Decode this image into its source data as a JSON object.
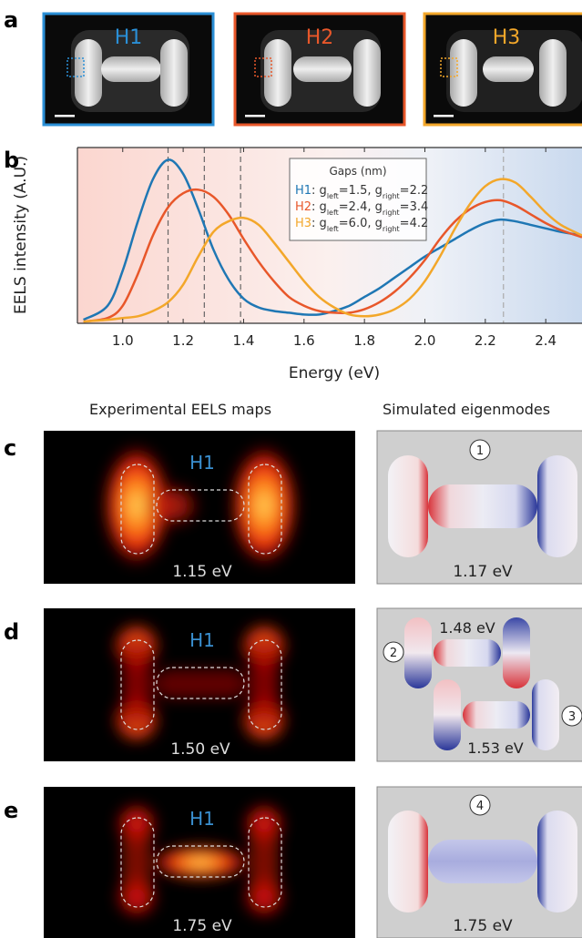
{
  "panels": {
    "a": {
      "label": "a",
      "images": [
        {
          "title": "H1",
          "color": "#1f77b4",
          "frame": "#2a8fd6"
        },
        {
          "title": "H2",
          "color": "#e8572a",
          "frame": "#e8572a"
        },
        {
          "title": "H3",
          "color": "#f3a72a",
          "frame": "#f3a72a"
        }
      ]
    },
    "b": {
      "label": "b"
    },
    "c": {
      "label": "c",
      "map_title": "H1",
      "map_energy": "1.15 eV",
      "mode_number": "1",
      "mode_energy": "1.17 eV"
    },
    "d": {
      "label": "d",
      "map_title": "H1",
      "map_energy": "1.50 eV",
      "mode_number_a": "2",
      "mode_energy_a": "1.48 eV",
      "mode_number_b": "3",
      "mode_energy_b": "1.53 eV"
    },
    "e": {
      "label": "e",
      "map_title": "H1",
      "map_energy": "1.75 eV",
      "mode_number": "4",
      "mode_energy": "1.75 eV"
    }
  },
  "column_headers": {
    "left": "Experimental EELS maps",
    "right": "Simulated eigenmodes"
  },
  "chart_data": {
    "type": "line",
    "xlabel": "Energy (eV)",
    "ylabel": "EELS intensity (A.U.)",
    "xlim": [
      0.85,
      2.52
    ],
    "ylim": [
      0,
      1.0
    ],
    "xticks": [
      "1.0",
      "1.2",
      "1.4",
      "1.6",
      "1.8",
      "2.0",
      "2.2",
      "2.4"
    ],
    "grid": false,
    "vlines": [
      1.15,
      1.27,
      1.39,
      2.26
    ],
    "legend": {
      "title": "Gaps (nm)",
      "placement": "top-right",
      "entries": [
        {
          "name": "H1",
          "text": ": g",
          "l": "left",
          "eq1": "=1.5,  g",
          "r": "right",
          "eq2": "=2.2",
          "color": "#1f77b4"
        },
        {
          "name": "H2",
          "text": ": g",
          "l": "left",
          "eq1": "=2.4, g",
          "r": "right",
          "eq2": "=3.4",
          "color": "#e8572a"
        },
        {
          "name": "H3",
          "text": ": g",
          "l": "left",
          "eq1": "=6.0, g",
          "r": "right",
          "eq2": "=4.2",
          "color": "#f3a72a"
        }
      ]
    },
    "series": [
      {
        "name": "H1",
        "color": "#1f77b4",
        "x": [
          0.87,
          0.95,
          1.0,
          1.05,
          1.1,
          1.15,
          1.2,
          1.25,
          1.3,
          1.35,
          1.4,
          1.45,
          1.5,
          1.55,
          1.6,
          1.65,
          1.7,
          1.75,
          1.8,
          1.85,
          1.9,
          1.95,
          2.0,
          2.05,
          2.1,
          2.15,
          2.2,
          2.25,
          2.3,
          2.35,
          2.4,
          2.45,
          2.52
        ],
        "y": [
          0.02,
          0.1,
          0.3,
          0.58,
          0.82,
          0.93,
          0.85,
          0.65,
          0.42,
          0.25,
          0.14,
          0.09,
          0.07,
          0.06,
          0.05,
          0.05,
          0.07,
          0.1,
          0.15,
          0.2,
          0.26,
          0.32,
          0.38,
          0.43,
          0.48,
          0.53,
          0.57,
          0.59,
          0.58,
          0.56,
          0.54,
          0.52,
          0.5
        ]
      },
      {
        "name": "H2",
        "color": "#e8572a",
        "x": [
          0.87,
          0.95,
          1.0,
          1.05,
          1.1,
          1.15,
          1.2,
          1.25,
          1.3,
          1.35,
          1.4,
          1.45,
          1.5,
          1.55,
          1.6,
          1.65,
          1.7,
          1.75,
          1.8,
          1.85,
          1.9,
          1.95,
          2.0,
          2.05,
          2.1,
          2.15,
          2.2,
          2.25,
          2.3,
          2.35,
          2.4,
          2.45,
          2.52
        ],
        "y": [
          0.01,
          0.03,
          0.1,
          0.28,
          0.5,
          0.66,
          0.74,
          0.76,
          0.72,
          0.62,
          0.48,
          0.35,
          0.24,
          0.15,
          0.1,
          0.07,
          0.06,
          0.06,
          0.08,
          0.12,
          0.18,
          0.26,
          0.36,
          0.48,
          0.58,
          0.65,
          0.69,
          0.7,
          0.67,
          0.62,
          0.57,
          0.53,
          0.49
        ]
      },
      {
        "name": "H3",
        "color": "#f3a72a",
        "x": [
          0.87,
          0.95,
          1.0,
          1.05,
          1.1,
          1.15,
          1.2,
          1.25,
          1.3,
          1.35,
          1.4,
          1.45,
          1.5,
          1.55,
          1.6,
          1.65,
          1.7,
          1.75,
          1.8,
          1.85,
          1.9,
          1.95,
          2.0,
          2.05,
          2.1,
          2.15,
          2.2,
          2.25,
          2.3,
          2.35,
          2.4,
          2.45,
          2.52
        ],
        "y": [
          0.01,
          0.02,
          0.03,
          0.04,
          0.07,
          0.12,
          0.22,
          0.38,
          0.52,
          0.58,
          0.6,
          0.56,
          0.46,
          0.35,
          0.24,
          0.15,
          0.09,
          0.05,
          0.04,
          0.05,
          0.08,
          0.14,
          0.24,
          0.38,
          0.54,
          0.68,
          0.78,
          0.82,
          0.8,
          0.72,
          0.63,
          0.56,
          0.5
        ]
      }
    ]
  }
}
